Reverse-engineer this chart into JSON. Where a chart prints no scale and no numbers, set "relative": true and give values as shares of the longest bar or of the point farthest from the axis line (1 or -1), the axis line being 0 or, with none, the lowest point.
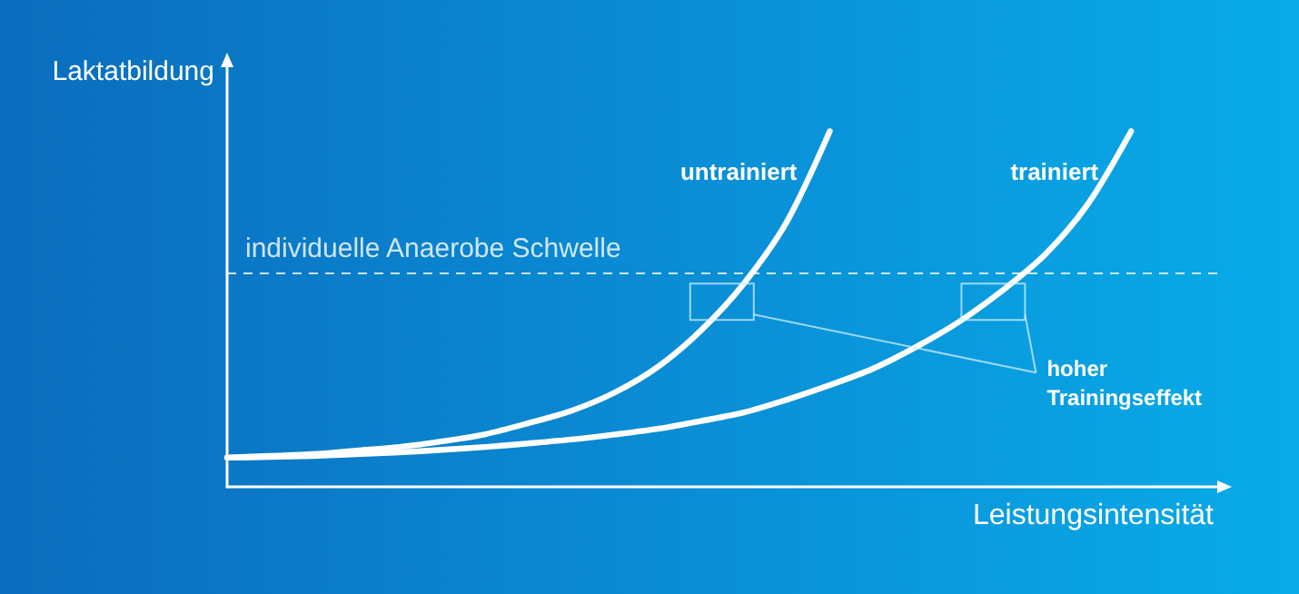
{
  "chart_data": {
    "type": "line",
    "relative": true,
    "marker": "none",
    "xlabel": "Leistungsintensität",
    "ylabel": "Laktatbildung",
    "categories": [
      null,
      null,
      null,
      null,
      null,
      null,
      null,
      null,
      null,
      null,
      null,
      null,
      null,
      null,
      null,
      null,
      null,
      null,
      null,
      null,
      null,
      null,
      null,
      null
    ],
    "series": [
      {
        "name": "untrainiert",
        "color": "#ffffff",
        "values": [
          0.082,
          0.087,
          0.092,
          0.102,
          0.112,
          0.128,
          0.148,
          0.179,
          0.214,
          0.265,
          0.337,
          0.439,
          0.571,
          0.745,
          1.0,
          null,
          null,
          null,
          null,
          null,
          null,
          null,
          null,
          null
        ]
      },
      {
        "name": "trainiert",
        "color": "#ffffff",
        "values": [
          0.082,
          0.084,
          0.087,
          0.092,
          0.097,
          0.104,
          0.112,
          0.122,
          0.133,
          0.147,
          0.163,
          0.185,
          0.209,
          0.245,
          0.286,
          0.332,
          0.393,
          0.464,
          0.551,
          0.653,
          0.796,
          1.0,
          null,
          null
        ]
      }
    ],
    "ref_lines": [
      {
        "axis": "y",
        "value": 0.597,
        "label": "individuelle Anaerobe Schwelle",
        "color": "#ffffff",
        "line_style": "dashed"
      }
    ],
    "annotations": [
      "hoher\nTrainingseffekt"
    ]
  }
}
